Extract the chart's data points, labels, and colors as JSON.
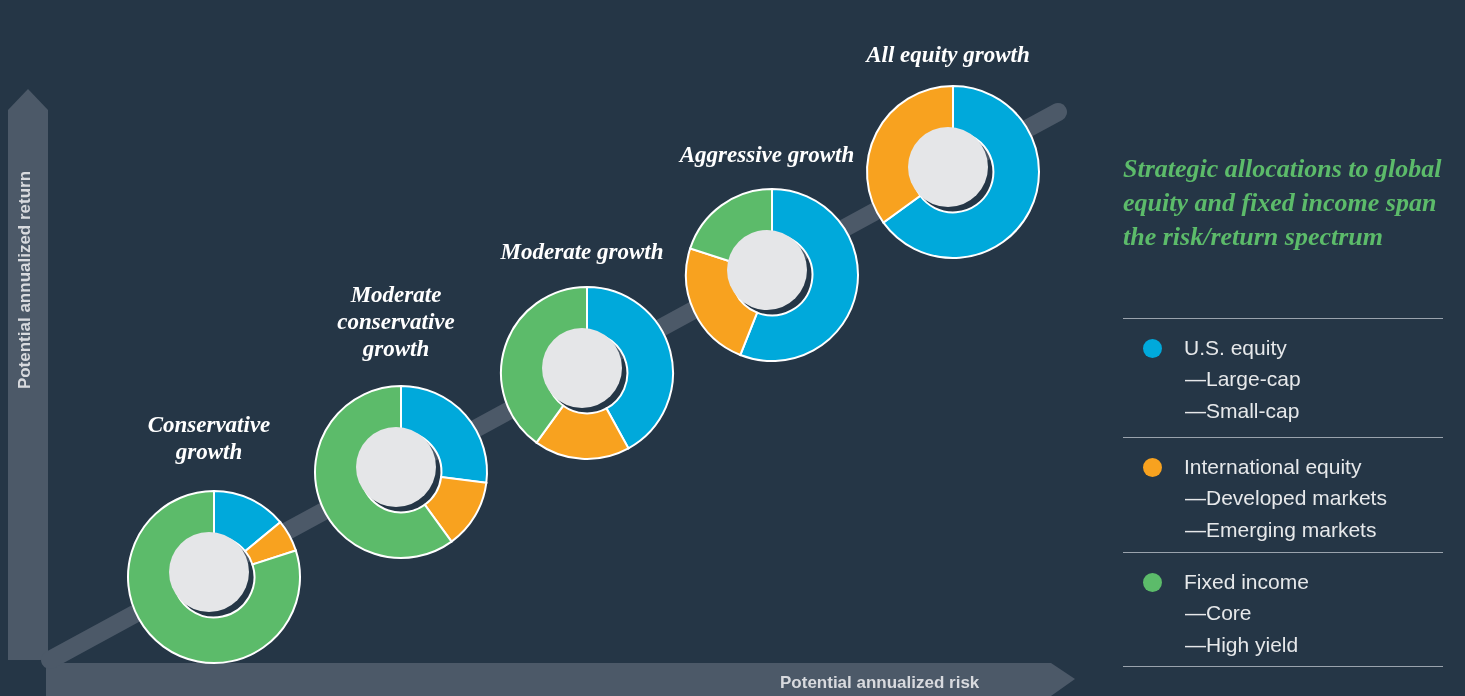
{
  "chart_data": [
    {
      "type": "donut",
      "title": "Conservative growth",
      "categories": [
        "U.S. equity",
        "International equity",
        "Fixed income"
      ],
      "values": [
        14,
        6,
        80
      ],
      "colors": [
        "#00a9db",
        "#f8a21f",
        "#5cbb6a"
      ]
    },
    {
      "type": "donut",
      "title": "Moderate conservative growth",
      "categories": [
        null,
        null,
        null
      ],
      "values": [
        27,
        13,
        60
      ],
      "colors": [
        "#00a9db",
        "#f8a21f",
        "#5cbb6a"
      ]
    },
    {
      "type": "donut",
      "title": "Moderate growth",
      "categories": [
        null,
        null,
        null
      ],
      "values": [
        42,
        18,
        40
      ],
      "colors": [
        "#00a9db",
        "#f8a21f",
        "#5cbb6a"
      ]
    },
    {
      "type": "donut",
      "title": "Aggressive growth",
      "categories": [
        null,
        null,
        null
      ],
      "values": [
        56,
        24,
        20
      ],
      "colors": [
        "#00a9db",
        "#f8a21f",
        "#5cbb6a"
      ]
    },
    {
      "type": "donut",
      "title": "All equity growth",
      "categories": [
        null,
        null
      ],
      "values": [
        65,
        35
      ],
      "colors": [
        "#00a9db",
        "#f8a21f"
      ]
    },
    {
      "type": "other",
      "title": "Strategic allocations to global equity and fixed income span the risk/return spectrum",
      "xlabel": "Potential annualized risk",
      "ylabel": "Potential annualized return",
      "annotations": [
        "—Large-cap",
        "—Small-cap",
        "—Developed markets",
        "—Emerging markets",
        "—Core",
        "—High yield"
      ]
    }
  ]
}
